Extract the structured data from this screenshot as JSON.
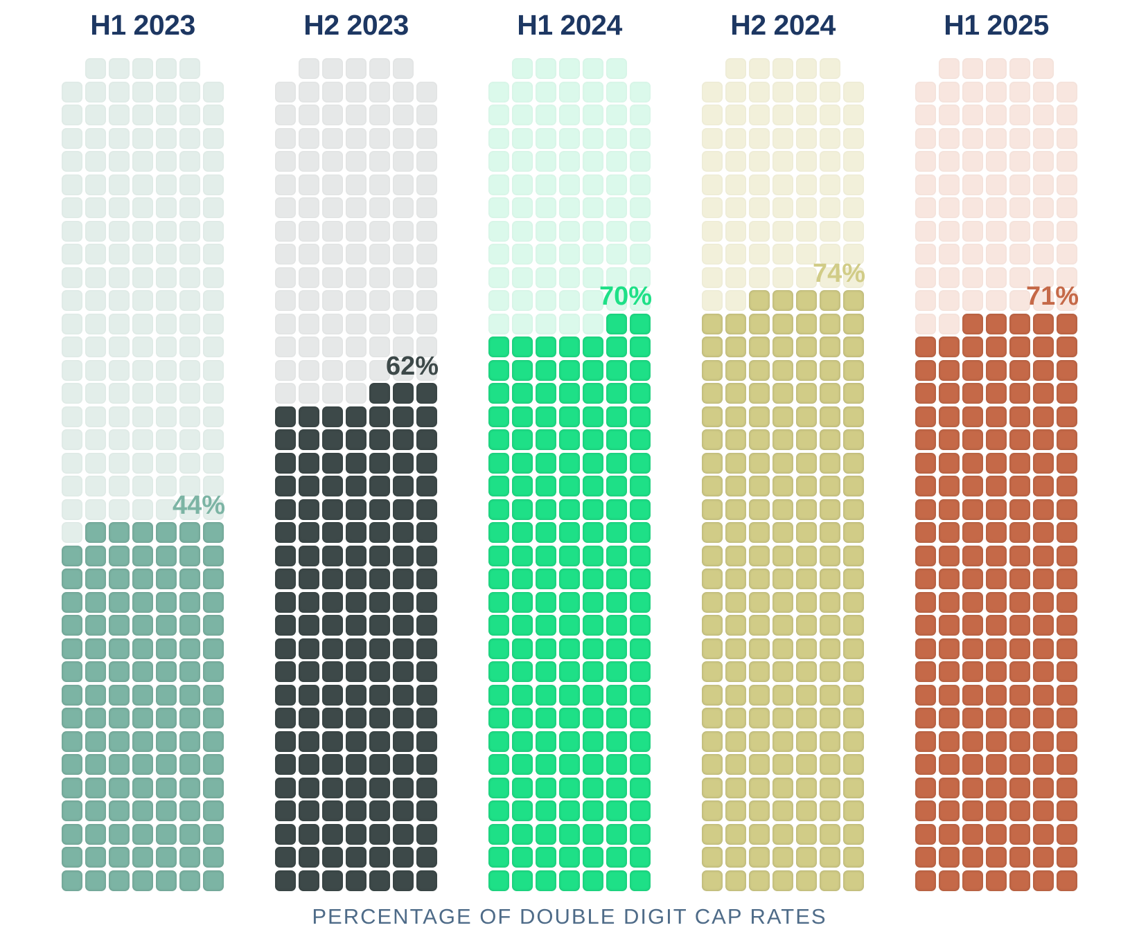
{
  "chart_data": {
    "type": "waffle",
    "title": "",
    "caption": "PERCENTAGE OF DOUBLE DIGIT CAP RATES",
    "categories": [
      "H1 2023",
      "H2 2023",
      "H1 2024",
      "H2 2024",
      "H1 2025"
    ],
    "values": [
      44,
      62,
      70,
      74,
      71
    ],
    "unit": "%",
    "grid": {
      "columns": 7,
      "rows": 35,
      "offset_row_squares": 5
    },
    "legend": "none",
    "series": [
      {
        "label": "H1 2023",
        "value_pct": 44,
        "value_label": "44%",
        "fill_color": "#7cb4a4",
        "light_color": "#e3eeea",
        "filled_full_rows": 15,
        "filled_partial_squares": 6
      },
      {
        "label": "H2 2023",
        "value_pct": 62,
        "value_label": "62%",
        "fill_color": "#3d4949",
        "light_color": "#e6e8e8",
        "filled_full_rows": 21,
        "filled_partial_squares": 3
      },
      {
        "label": "H1 2024",
        "value_pct": 70,
        "value_label": "70%",
        "fill_color": "#1ee087",
        "light_color": "#dbf9eb",
        "filled_full_rows": 24,
        "filled_partial_squares": 2
      },
      {
        "label": "H2 2024",
        "value_pct": 74,
        "value_label": "74%",
        "fill_color": "#d1cc87",
        "light_color": "#f2f0da",
        "filled_full_rows": 25,
        "filled_partial_squares": 5
      },
      {
        "label": "H1 2025",
        "value_pct": 71,
        "value_label": "71%",
        "fill_color": "#c56948",
        "light_color": "#f8e6df",
        "filled_full_rows": 24,
        "filled_partial_squares": 5
      }
    ],
    "colors": {
      "header_text": "#1d3762",
      "caption_text": "#4e6b88",
      "background": "#ffffff"
    }
  }
}
